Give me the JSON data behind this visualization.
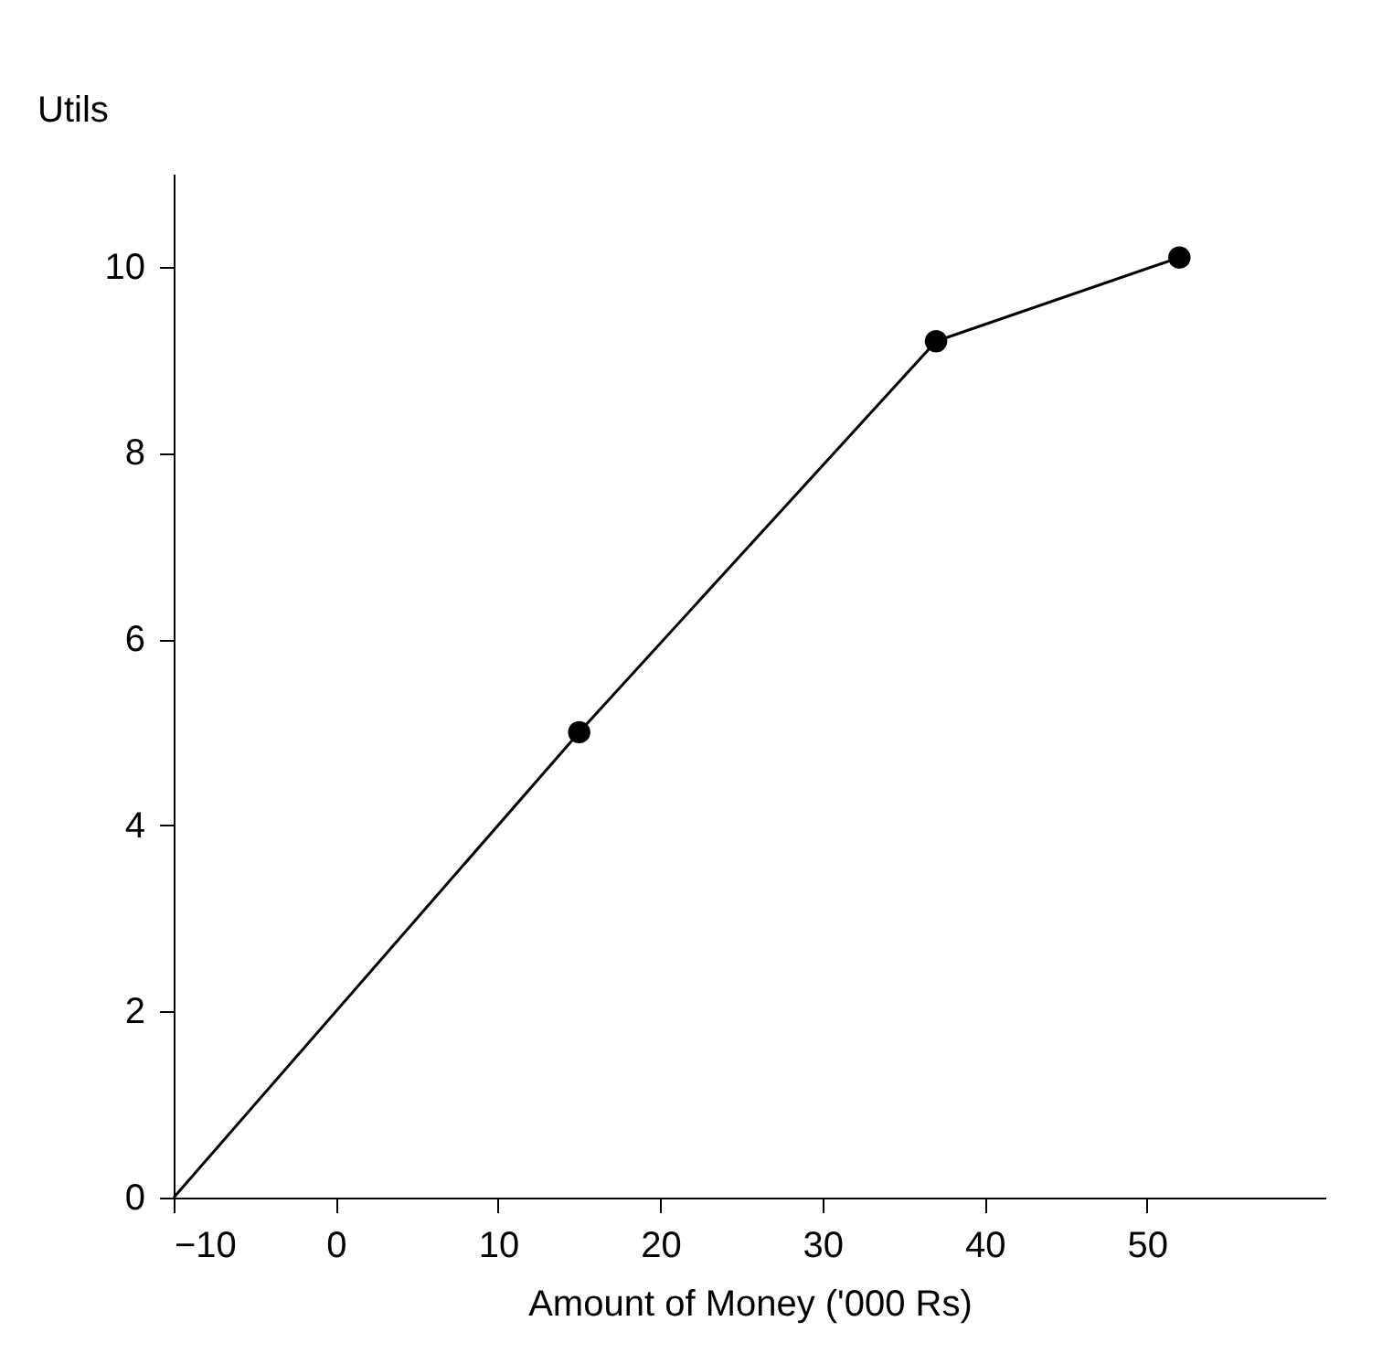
{
  "chart_data": {
    "type": "line",
    "xlabel": "Amount of Money  ('000 Rs)",
    "ylabel": "Utils",
    "series": [
      {
        "color": "#000000",
        "marker": "none",
        "x": [
          -10,
          15,
          37,
          52
        ],
        "values": [
          0,
          5,
          9.2,
          10.1
        ]
      },
      {
        "type": "scatter",
        "color": "#000000",
        "marker": "circle",
        "x": [
          15,
          37,
          52
        ],
        "values": [
          5,
          9.2,
          10.1
        ]
      }
    ],
    "xlim": [
      -10,
      61
    ],
    "xticks": [
      -10,
      0,
      10,
      20,
      30,
      40,
      50
    ],
    "ylim": [
      0,
      11
    ],
    "yticks": [
      0,
      2,
      4,
      6,
      8,
      10
    ],
    "grid": false
  }
}
